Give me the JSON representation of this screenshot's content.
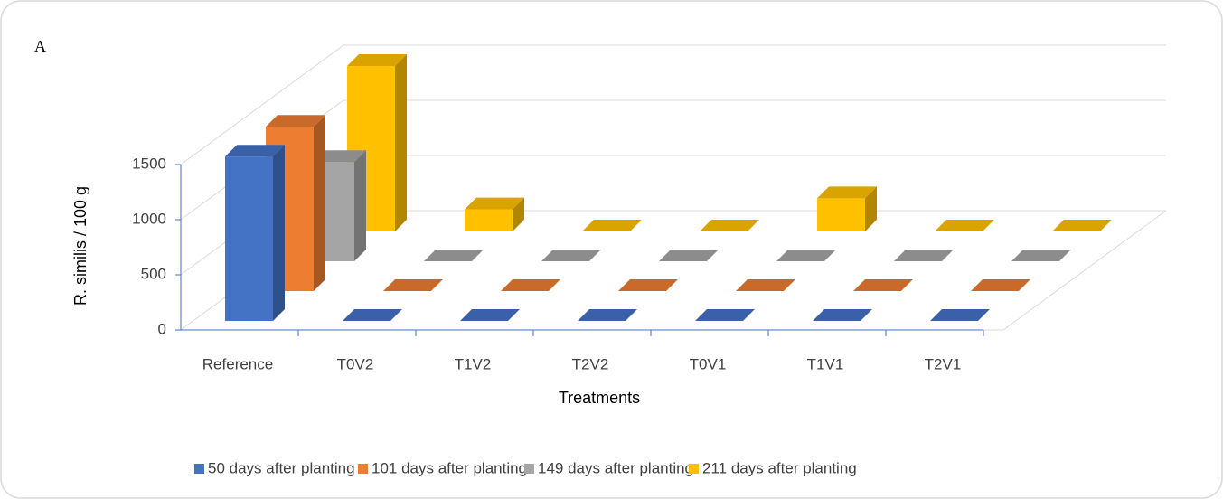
{
  "chart_data": {
    "type": "bar3d",
    "title": "A",
    "x_label": "Treatments",
    "y_label": "R. similis / 100 g",
    "categories": [
      "Reference",
      "T0V2",
      "T1V2",
      "T2V2",
      "T0V1",
      "T1V1",
      "T2V1"
    ],
    "series": [
      {
        "name": "50 days after planting",
        "color": "#4472c4",
        "values": [
          1490,
          0,
          0,
          0,
          0,
          0,
          0
        ]
      },
      {
        "name": "101 days after planting",
        "color": "#ed7d31",
        "values": [
          1490,
          0,
          0,
          0,
          0,
          0,
          0
        ]
      },
      {
        "name": "149 days after planting",
        "color": "#a5a5a5",
        "values": [
          900,
          0,
          0,
          0,
          0,
          0,
          0
        ]
      },
      {
        "name": "211 days after planting",
        "color": "#ffc000",
        "values": [
          1500,
          200,
          0,
          0,
          300,
          0,
          0
        ]
      }
    ],
    "ylim": [
      0,
      1500
    ],
    "yticks": [
      0,
      500,
      1000,
      1500
    ],
    "grid": true,
    "legend": "bottom"
  }
}
